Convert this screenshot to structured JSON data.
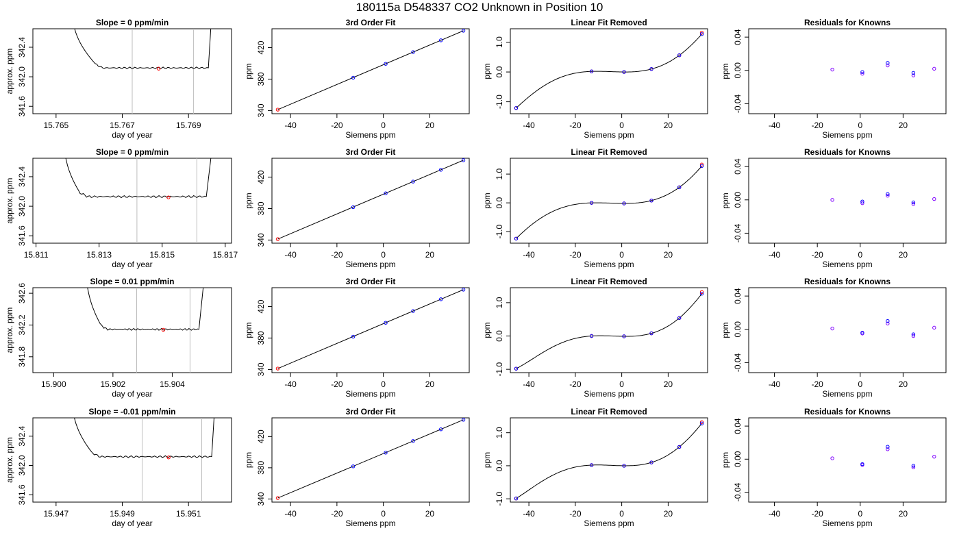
{
  "page_title": "180115a      D548337    CO2 Unknown in Position  10",
  "colors": {
    "points_calc": "#0000ff",
    "points_obs": "#ff0000",
    "residuals_a": "#7f00ff",
    "residuals_b": "#0000ff",
    "line": "#000000",
    "vline": "#bebebe"
  },
  "chart_data": [
    {
      "type": "line",
      "row": 1,
      "title": "Slope =  0  ppm/min",
      "xlabel": "day of year",
      "ylabel": "approx. ppm",
      "xticks": [
        "15.765",
        "15.767",
        "15.769"
      ],
      "yticks": [
        "341.6",
        "342.0",
        "342.4"
      ],
      "xlim": [
        15.7643,
        15.7703
      ],
      "ylim": [
        341.5,
        342.65
      ],
      "vlines": [
        15.7673,
        15.76915
      ],
      "marker": {
        "x": 15.7681,
        "y": 342.11
      },
      "trace": {
        "x_start": 15.7655,
        "x_flat_start": 15.7662,
        "x_flat_end": 15.7696,
        "x_end": 15.7697,
        "level": 342.12,
        "noise": 0.012
      }
    },
    {
      "type": "line",
      "row": 1,
      "title": "3rd Order Fit",
      "xlabel": "Siemens ppm",
      "ylabel": "ppm",
      "xticks": [
        "-40",
        "-20",
        "0",
        "20"
      ],
      "yticks": [
        "340",
        "380",
        "420"
      ],
      "xlim": [
        -48,
        37
      ],
      "ylim": [
        336,
        444
      ],
      "line_x": [
        -45.5,
        34.5
      ],
      "line_y": [
        341.2,
        441.5
      ],
      "points": [
        {
          "x": -45.5,
          "y": 341.2
        },
        {
          "x": -13,
          "y": 381.8
        },
        {
          "x": 1,
          "y": 399.4
        },
        {
          "x": 12.8,
          "y": 414.3
        },
        {
          "x": 24.8,
          "y": 429.3
        },
        {
          "x": 34.5,
          "y": 441.5
        }
      ]
    },
    {
      "type": "line",
      "row": 1,
      "title": "Linear Fit Removed",
      "xlabel": "Siemens ppm",
      "ylabel": "ppm",
      "xticks": [
        "-40",
        "-20",
        "0",
        "20"
      ],
      "yticks": [
        "-1.0",
        "0.0",
        "1.0"
      ],
      "xlim": [
        -48,
        37
      ],
      "ylim": [
        -1.4,
        1.45
      ],
      "points_calc": [
        {
          "x": -45.5,
          "y": -1.21
        },
        {
          "x": -13,
          "y": 0.02
        },
        {
          "x": 1,
          "y": -0.0
        },
        {
          "x": 12.8,
          "y": 0.1
        },
        {
          "x": 24.8,
          "y": 0.56
        },
        {
          "x": 34.5,
          "y": 1.27
        }
      ],
      "points_obs": [
        {
          "x": -45.5,
          "y": -1.21
        },
        {
          "x": -13,
          "y": 0.02
        },
        {
          "x": 1,
          "y": -0.0
        },
        {
          "x": 12.8,
          "y": 0.1
        },
        {
          "x": 24.8,
          "y": 0.56
        },
        {
          "x": 34.5,
          "y": 1.32
        }
      ]
    },
    {
      "type": "scatter",
      "row": 1,
      "title": "Residuals for Knowns",
      "xlabel": "Siemens ppm",
      "ylabel": "ppm",
      "xticks": [
        "-40",
        "-20",
        "0",
        "20"
      ],
      "yticks": [
        "-0.04",
        "0.00",
        "0.04"
      ],
      "xlim": [
        -52,
        40
      ],
      "ylim": [
        -0.052,
        0.05
      ],
      "series": [
        {
          "values": [
            {
              "x": -13,
              "y": 0.001
            },
            {
              "x": 1,
              "y": -0.004
            },
            {
              "x": 12.8,
              "y": 0.006
            },
            {
              "x": 24.8,
              "y": -0.006
            },
            {
              "x": 34.5,
              "y": 0.002
            }
          ]
        },
        {
          "values": [
            {
              "x": 1,
              "y": -0.002
            },
            {
              "x": 12.8,
              "y": 0.009
            },
            {
              "x": 24.8,
              "y": -0.003
            }
          ]
        }
      ]
    },
    {
      "type": "line",
      "row": 2,
      "title": "Slope =  0  ppm/min",
      "xlabel": "day of year",
      "ylabel": "approx. ppm",
      "xticks": [
        "15.811",
        "15.813",
        "15.815",
        "15.817"
      ],
      "yticks": [
        "341.6",
        "342.0",
        "342.4"
      ],
      "xlim": [
        15.8109,
        15.8172
      ],
      "ylim": [
        341.5,
        342.65
      ],
      "vlines": [
        15.8142,
        15.8161
      ],
      "marker": {
        "x": 15.8152,
        "y": 342.12
      },
      "trace": {
        "x_start": 15.8119,
        "x_flat_start": 15.8124,
        "x_flat_end": 15.8164,
        "x_end": 15.8166,
        "level": 342.13,
        "noise": 0.015
      }
    },
    {
      "type": "line",
      "row": 2,
      "title": "3rd Order Fit",
      "xlabel": "Siemens ppm",
      "ylabel": "ppm",
      "xticks": [
        "-40",
        "-20",
        "0",
        "20"
      ],
      "yticks": [
        "340",
        "380",
        "420"
      ],
      "xlim": [
        -48,
        37
      ],
      "ylim": [
        336,
        444
      ],
      "line_x": [
        -45.5,
        34.5
      ],
      "line_y": [
        341.2,
        441.5
      ],
      "points": [
        {
          "x": -45.5,
          "y": 341.2
        },
        {
          "x": -13,
          "y": 381.8
        },
        {
          "x": 1,
          "y": 399.4
        },
        {
          "x": 12.8,
          "y": 414.3
        },
        {
          "x": 24.8,
          "y": 429.3
        },
        {
          "x": 34.5,
          "y": 441.5
        }
      ]
    },
    {
      "type": "line",
      "row": 2,
      "title": "Linear Fit Removed",
      "xlabel": "Siemens ppm",
      "ylabel": "ppm",
      "xticks": [
        "-40",
        "-20",
        "0",
        "20"
      ],
      "yticks": [
        "-1.0",
        "0.0",
        "1.0"
      ],
      "xlim": [
        -48,
        37
      ],
      "ylim": [
        -1.4,
        1.55
      ],
      "points_calc": [
        {
          "x": -45.5,
          "y": -1.24
        },
        {
          "x": -13,
          "y": 0.0
        },
        {
          "x": 1,
          "y": -0.02
        },
        {
          "x": 12.8,
          "y": 0.08
        },
        {
          "x": 24.8,
          "y": 0.54
        },
        {
          "x": 34.5,
          "y": 1.28
        }
      ],
      "points_obs": [
        {
          "x": -45.5,
          "y": -1.24
        },
        {
          "x": -13,
          "y": 0.0
        },
        {
          "x": 1,
          "y": -0.02
        },
        {
          "x": 12.8,
          "y": 0.08
        },
        {
          "x": 24.8,
          "y": 0.54
        },
        {
          "x": 34.5,
          "y": 1.33
        }
      ]
    },
    {
      "type": "scatter",
      "row": 2,
      "title": "Residuals for Knowns",
      "xlabel": "Siemens ppm",
      "ylabel": "ppm",
      "xticks": [
        "-40",
        "-20",
        "0",
        "20"
      ],
      "yticks": [
        "-0.04",
        "0.00",
        "0.04"
      ],
      "xlim": [
        -52,
        40
      ],
      "ylim": [
        -0.052,
        0.05
      ],
      "series": [
        {
          "values": [
            {
              "x": -13,
              "y": 0.0
            },
            {
              "x": 1,
              "y": -0.004
            },
            {
              "x": 12.8,
              "y": 0.005
            },
            {
              "x": 24.8,
              "y": -0.005
            },
            {
              "x": 34.5,
              "y": 0.001
            }
          ]
        },
        {
          "values": [
            {
              "x": 1,
              "y": -0.002
            },
            {
              "x": 12.8,
              "y": 0.007
            },
            {
              "x": 24.8,
              "y": -0.003
            }
          ]
        }
      ]
    },
    {
      "type": "line",
      "row": 3,
      "title": "Slope =  0.01  ppm/min",
      "xlabel": "day of year",
      "ylabel": "approx. ppm",
      "xticks": [
        "15.900",
        "15.902",
        "15.904"
      ],
      "yticks": [
        "341.8",
        "342.2",
        "342.6"
      ],
      "xlim": [
        15.8993,
        15.906
      ],
      "ylim": [
        341.6,
        342.67
      ],
      "vlines": [
        15.9028,
        15.9046
      ],
      "marker": {
        "x": 15.9037,
        "y": 342.14
      },
      "trace": {
        "x_start": 15.9011,
        "x_flat_start": 15.9016,
        "x_flat_end": 15.9049,
        "x_end": 15.9051,
        "level": 342.145,
        "noise": 0.012
      }
    },
    {
      "type": "line",
      "row": 3,
      "title": "3rd Order Fit",
      "xlabel": "Siemens ppm",
      "ylabel": "ppm",
      "xticks": [
        "-40",
        "-20",
        "0",
        "20"
      ],
      "yticks": [
        "340",
        "380",
        "420"
      ],
      "xlim": [
        -48,
        37
      ],
      "ylim": [
        336,
        444
      ],
      "line_x": [
        -45.5,
        34.5
      ],
      "line_y": [
        341.2,
        441.5
      ],
      "points": [
        {
          "x": -45.5,
          "y": 341.2
        },
        {
          "x": -13,
          "y": 381.8
        },
        {
          "x": 1,
          "y": 399.4
        },
        {
          "x": 12.8,
          "y": 414.3
        },
        {
          "x": 24.8,
          "y": 429.3
        },
        {
          "x": 34.5,
          "y": 441.5
        }
      ]
    },
    {
      "type": "line",
      "row": 3,
      "title": "Linear Fit Removed",
      "xlabel": "Siemens ppm",
      "ylabel": "ppm",
      "xticks": [
        "-40",
        "-20",
        "0",
        "20"
      ],
      "yticks": [
        "-1.0",
        "0.0",
        "1.0"
      ],
      "xlim": [
        -48,
        37
      ],
      "ylim": [
        -1.1,
        1.45
      ],
      "points_calc": [
        {
          "x": -45.5,
          "y": -0.98
        },
        {
          "x": -13,
          "y": 0.0
        },
        {
          "x": 1,
          "y": -0.01
        },
        {
          "x": 12.8,
          "y": 0.08
        },
        {
          "x": 24.8,
          "y": 0.54
        },
        {
          "x": 34.5,
          "y": 1.27
        }
      ],
      "points_obs": [
        {
          "x": -45.5,
          "y": -0.98
        },
        {
          "x": -13,
          "y": 0.0
        },
        {
          "x": 1,
          "y": -0.01
        },
        {
          "x": 12.8,
          "y": 0.08
        },
        {
          "x": 24.8,
          "y": 0.54
        },
        {
          "x": 34.5,
          "y": 1.32
        }
      ]
    },
    {
      "type": "scatter",
      "row": 3,
      "title": "Residuals for Knowns",
      "xlabel": "Siemens ppm",
      "ylabel": "ppm",
      "xticks": [
        "-40",
        "-20",
        "0",
        "20"
      ],
      "yticks": [
        "-0.04",
        "0.00",
        "0.04"
      ],
      "xlim": [
        -52,
        40
      ],
      "ylim": [
        -0.052,
        0.05
      ],
      "series": [
        {
          "values": [
            {
              "x": -13,
              "y": 0.001
            },
            {
              "x": 1,
              "y": -0.005
            },
            {
              "x": 12.8,
              "y": 0.007
            },
            {
              "x": 24.8,
              "y": -0.008
            },
            {
              "x": 34.5,
              "y": 0.002
            }
          ]
        },
        {
          "values": [
            {
              "x": 1,
              "y": -0.004
            },
            {
              "x": 12.8,
              "y": 0.01
            },
            {
              "x": 24.8,
              "y": -0.006
            }
          ]
        }
      ]
    },
    {
      "type": "line",
      "row": 4,
      "title": "Slope =  -0.01  ppm/min",
      "xlabel": "day of year",
      "ylabel": "approx. ppm",
      "xticks": [
        "15.947",
        "15.949",
        "15.951"
      ],
      "yticks": [
        "341.6",
        "342.0",
        "342.4"
      ],
      "xlim": [
        15.9463,
        15.9523
      ],
      "ylim": [
        341.5,
        342.65
      ],
      "vlines": [
        15.9496,
        15.9514
      ],
      "marker": {
        "x": 15.9504,
        "y": 342.11
      },
      "trace": {
        "x_start": 15.9475,
        "x_flat_start": 15.9481,
        "x_flat_end": 15.9517,
        "x_end": 15.9518,
        "level": 342.12,
        "noise": 0.013
      }
    },
    {
      "type": "line",
      "row": 4,
      "title": "3rd Order Fit",
      "xlabel": "Siemens ppm",
      "ylabel": "ppm",
      "xticks": [
        "-40",
        "-20",
        "0",
        "20"
      ],
      "yticks": [
        "340",
        "380",
        "420"
      ],
      "xlim": [
        -48,
        37
      ],
      "ylim": [
        336,
        444
      ],
      "line_x": [
        -45.5,
        34.5
      ],
      "line_y": [
        341.2,
        441.5
      ],
      "points": [
        {
          "x": -45.5,
          "y": 341.2
        },
        {
          "x": -13,
          "y": 381.8
        },
        {
          "x": 1,
          "y": 399.4
        },
        {
          "x": 12.8,
          "y": 414.3
        },
        {
          "x": 24.8,
          "y": 429.3
        },
        {
          "x": 34.5,
          "y": 441.5
        }
      ]
    },
    {
      "type": "line",
      "row": 4,
      "title": "Linear Fit Removed",
      "xlabel": "Siemens ppm",
      "ylabel": "ppm",
      "xticks": [
        "-40",
        "-20",
        "0",
        "20"
      ],
      "yticks": [
        "-1.0",
        "0.0",
        "1.0"
      ],
      "xlim": [
        -48,
        37
      ],
      "ylim": [
        -1.1,
        1.45
      ],
      "points_calc": [
        {
          "x": -45.5,
          "y": -0.99
        },
        {
          "x": -13,
          "y": 0.02
        },
        {
          "x": 1,
          "y": 0.0
        },
        {
          "x": 12.8,
          "y": 0.1
        },
        {
          "x": 24.8,
          "y": 0.57
        },
        {
          "x": 34.5,
          "y": 1.28
        }
      ],
      "points_obs": [
        {
          "x": -45.5,
          "y": -0.99
        },
        {
          "x": -13,
          "y": 0.02
        },
        {
          "x": 1,
          "y": 0.0
        },
        {
          "x": 12.8,
          "y": 0.1
        },
        {
          "x": 24.8,
          "y": 0.57
        },
        {
          "x": 34.5,
          "y": 1.32
        }
      ]
    },
    {
      "type": "scatter",
      "row": 4,
      "title": "Residuals for Knowns",
      "xlabel": "Siemens ppm",
      "ylabel": "ppm",
      "xticks": [
        "-40",
        "-20",
        "0",
        "20"
      ],
      "yticks": [
        "-0.04",
        "0.00",
        "0.04"
      ],
      "xlim": [
        -52,
        40
      ],
      "ylim": [
        -0.052,
        0.05
      ],
      "series": [
        {
          "values": [
            {
              "x": -13,
              "y": 0.001
            },
            {
              "x": 1,
              "y": -0.007
            },
            {
              "x": 12.8,
              "y": 0.012
            },
            {
              "x": 24.8,
              "y": -0.01
            },
            {
              "x": 34.5,
              "y": 0.003
            }
          ]
        },
        {
          "values": [
            {
              "x": 1,
              "y": -0.006
            },
            {
              "x": 12.8,
              "y": 0.015
            },
            {
              "x": 24.8,
              "y": -0.008
            }
          ]
        }
      ]
    }
  ]
}
